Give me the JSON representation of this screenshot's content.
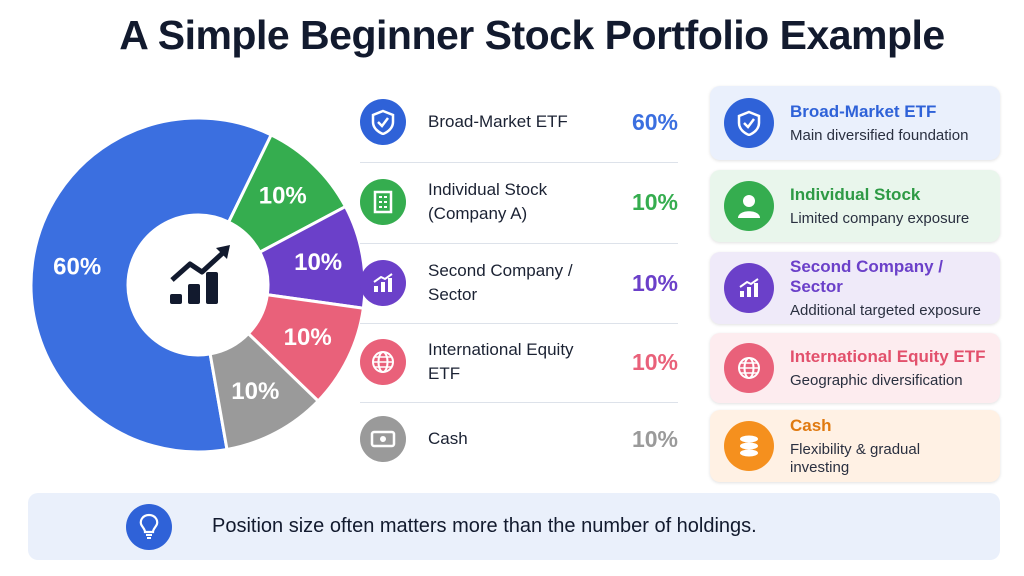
{
  "title": "A Simple Beginner Stock Portfolio Example",
  "chart_data": {
    "type": "pie",
    "donut": true,
    "categories": [
      "Broad-Market ETF",
      "Individual Stock (Company A)",
      "Second Company / Sector",
      "International Equity ETF",
      "Cash"
    ],
    "values": [
      60,
      10,
      10,
      10,
      10
    ],
    "value_labels": [
      "60%",
      "10%",
      "10%",
      "10%",
      "10%"
    ],
    "colors": [
      "#3b6fe0",
      "#35ad4f",
      "#6b40c9",
      "#e9617a",
      "#9a9a9a"
    ]
  },
  "cards": [
    {
      "title": "Broad-Market ETF",
      "text": "Main diversified foundation"
    },
    {
      "title": "Individual Stock",
      "text": "Limited company exposure"
    },
    {
      "title": "Second Company / Sector",
      "text": "Additional targeted exposure"
    },
    {
      "title": "International Equity ETF",
      "text": "Geographic diversification"
    },
    {
      "title": "Cash",
      "text": "Flexibility & gradual investing"
    }
  ],
  "footer": "Position size often matters more than the number of holdings."
}
